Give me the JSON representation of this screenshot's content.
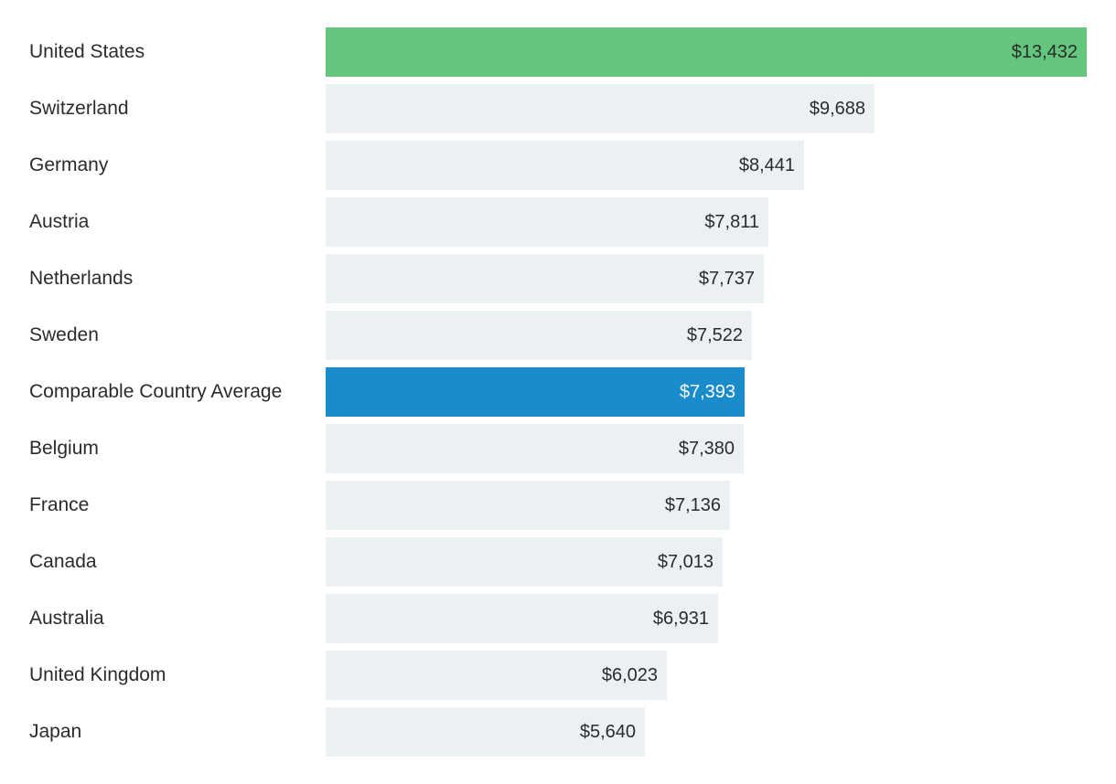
{
  "chart_data": {
    "type": "bar",
    "orientation": "horizontal",
    "categories": [
      "United States",
      "Switzerland",
      "Germany",
      "Austria",
      "Netherlands",
      "Sweden",
      "Comparable Country Average",
      "Belgium",
      "France",
      "Canada",
      "Australia",
      "United Kingdom",
      "Japan"
    ],
    "values": [
      13432,
      9688,
      8441,
      7811,
      7737,
      7522,
      7393,
      7380,
      7136,
      7013,
      6931,
      6023,
      5640
    ],
    "value_labels": [
      "$13,432",
      "$9,688",
      "$8,441",
      "$7,811",
      "$7,737",
      "$7,522",
      "$7,393",
      "$7,380",
      "$7,136",
      "$7,013",
      "$6,931",
      "$6,023",
      "$5,640"
    ],
    "bar_colors": [
      "#64c67d",
      "#ebf0f2",
      "#ebf0f2",
      "#ebf0f2",
      "#ebf0f2",
      "#ebf0f2",
      "#1a8bcb",
      "#ebf0f2",
      "#ebf0f2",
      "#ebf0f2",
      "#ebf0f2",
      "#ebf0f2",
      "#ebf0f2"
    ],
    "label_colors": [
      "#2b2b2b",
      "#2b2b2b",
      "#2b2b2b",
      "#2b2b2b",
      "#2b2b2b",
      "#2b2b2b",
      "#ffffff",
      "#2b2b2b",
      "#2b2b2b",
      "#2b2b2b",
      "#2b2b2b",
      "#2b2b2b",
      "#2b2b2b"
    ],
    "xlim": [
      0,
      13432
    ],
    "grid": false,
    "title": "",
    "xlabel": "",
    "ylabel": ""
  }
}
